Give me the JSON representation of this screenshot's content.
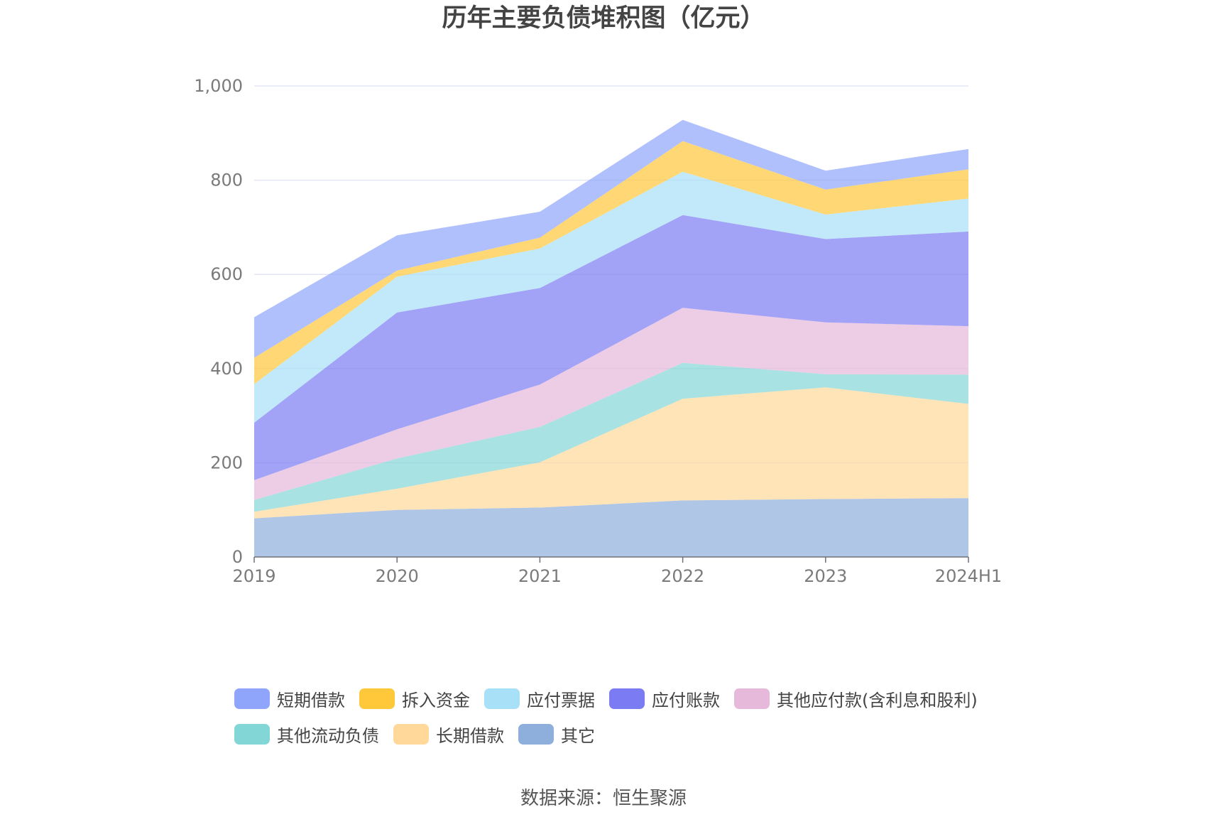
{
  "chart_data": {
    "type": "area",
    "stacked": true,
    "title": "历年主要负债堆积图（亿元）",
    "categories": [
      "2019",
      "2020",
      "2021",
      "2022",
      "2023",
      "2024H1"
    ],
    "ylim": [
      0,
      1000
    ],
    "yticks": [
      0,
      200,
      400,
      600,
      800,
      1000
    ],
    "ytick_labels": [
      "0",
      "200",
      "400",
      "600",
      "800",
      "1,000"
    ],
    "grid": true,
    "legend_position": "bottom",
    "series": [
      {
        "name": "其它",
        "color": "#8eaedc",
        "values": [
          82,
          100,
          105,
          120,
          123,
          125
        ]
      },
      {
        "name": "长期借款",
        "color": "#ffd89a",
        "values": [
          14,
          45,
          96,
          216,
          237,
          200
        ]
      },
      {
        "name": "其他流动负债",
        "color": "#83d6d6",
        "values": [
          25,
          64,
          75,
          76,
          28,
          62
        ]
      },
      {
        "name": "其他应付款(含利息和股利)",
        "color": "#e6b8da",
        "values": [
          42,
          62,
          90,
          117,
          110,
          103
        ]
      },
      {
        "name": "应付账款",
        "color": "#7b7cf3",
        "values": [
          122,
          248,
          205,
          197,
          177,
          201
        ]
      },
      {
        "name": "应付票据",
        "color": "#a8e0f8",
        "values": [
          82,
          76,
          84,
          92,
          52,
          70
        ]
      },
      {
        "name": "拆入资金",
        "color": "#ffc73a",
        "values": [
          56,
          13,
          23,
          65,
          53,
          62
        ]
      },
      {
        "name": "短期借款",
        "color": "#8ea5fb",
        "values": [
          86,
          75,
          55,
          45,
          40,
          43
        ]
      }
    ]
  },
  "legend": {
    "rows": [
      [
        "短期借款",
        "拆入资金",
        "应付票据",
        "应付账款",
        "其他应付款(含利息和股利)"
      ],
      [
        "其他流动负债",
        "长期借款",
        "其它"
      ]
    ]
  },
  "source": "数据来源：恒生聚源"
}
